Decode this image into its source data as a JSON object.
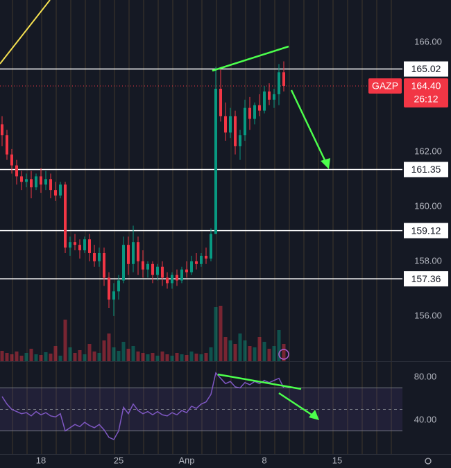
{
  "chart_data": {
    "type": "candlestick",
    "symbol": "GAZP",
    "categories": [
      null,
      null,
      null,
      null,
      null,
      null,
      null,
      null,
      "18",
      null,
      null,
      null,
      null,
      null,
      null,
      null,
      null,
      null,
      null,
      null,
      null,
      null,
      null,
      null,
      "25",
      null,
      null,
      null,
      null,
      null,
      null,
      null,
      null,
      null,
      null,
      null,
      null,
      null,
      "Апр",
      null,
      null,
      null,
      null,
      null,
      null,
      null,
      null,
      null,
      null,
      null,
      null,
      null,
      null,
      null,
      "8",
      null,
      null,
      null,
      null,
      null,
      null,
      null,
      null,
      null,
      null,
      null,
      null,
      null,
      null,
      "15"
    ],
    "open": [
      163.0,
      162.6,
      161.9,
      161.5,
      161.1,
      160.9,
      161.0,
      160.7,
      161.1,
      160.8,
      161.0,
      160.6,
      160.4,
      160.8,
      158.5,
      158.7,
      158.6,
      158.4,
      158.8,
      158.3,
      158.0,
      158.3,
      157.4,
      156.6,
      156.9,
      157.3,
      158.6,
      157.9,
      158.7,
      158.0,
      157.7,
      157.9,
      157.5,
      157.8,
      157.4,
      157.2,
      157.5,
      157.3,
      157.7,
      157.6,
      158.0,
      157.9,
      158.2,
      158.1,
      159.0,
      164.3,
      163.3,
      162.7,
      163.3,
      162.2,
      162.6,
      163.6,
      163.2,
      163.7,
      163.5,
      164.2,
      163.9,
      164.1,
      164.9,
      null,
      null,
      null,
      null,
      null,
      null,
      null,
      null,
      null,
      null,
      null
    ],
    "high": [
      163.3,
      162.8,
      162.1,
      161.7,
      161.3,
      161.2,
      161.3,
      161.2,
      161.4,
      161.3,
      161.2,
      160.9,
      160.9,
      160.9,
      158.9,
      159.0,
      158.8,
      158.9,
      159.0,
      158.6,
      158.5,
      158.5,
      157.6,
      157.2,
      157.5,
      158.9,
      158.9,
      159.3,
      158.9,
      158.4,
      158.0,
      158.0,
      157.9,
      158.0,
      157.6,
      157.6,
      157.7,
      157.8,
      158.0,
      158.2,
      158.3,
      158.3,
      158.5,
      159.2,
      165.1,
      165.0,
      163.8,
      163.6,
      163.5,
      162.8,
      163.9,
      164.0,
      163.8,
      164.1,
      164.4,
      164.5,
      164.3,
      165.2,
      165.3,
      null,
      null,
      null,
      null,
      null,
      null,
      null,
      null,
      null,
      null,
      null
    ],
    "low": [
      162.2,
      161.7,
      161.2,
      160.8,
      160.6,
      160.7,
      160.3,
      160.6,
      160.5,
      160.6,
      160.3,
      160.2,
      160.3,
      158.3,
      158.2,
      158.4,
      158.1,
      158.3,
      158.0,
      157.8,
      157.8,
      157.1,
      156.3,
      156.0,
      156.6,
      157.2,
      157.5,
      157.6,
      157.5,
      157.4,
      157.4,
      157.2,
      157.3,
      157.1,
      157.0,
      157.0,
      157.1,
      157.2,
      157.4,
      157.5,
      157.7,
      157.8,
      157.9,
      158.0,
      159.0,
      163.1,
      162.4,
      162.5,
      161.9,
      161.7,
      162.4,
      162.8,
      163.0,
      163.3,
      163.4,
      163.7,
      163.6,
      163.7,
      164.2,
      null,
      null,
      null,
      null,
      null,
      null,
      null,
      null,
      null,
      null,
      null
    ],
    "close": [
      162.6,
      161.9,
      161.5,
      161.1,
      160.9,
      161.0,
      160.7,
      161.1,
      160.8,
      161.0,
      160.6,
      160.4,
      160.8,
      158.5,
      158.7,
      158.6,
      158.4,
      158.8,
      158.3,
      158.0,
      158.3,
      157.4,
      156.6,
      156.9,
      157.3,
      158.6,
      157.9,
      158.7,
      158.0,
      157.7,
      157.9,
      157.5,
      157.8,
      157.4,
      157.2,
      157.5,
      157.3,
      157.7,
      157.6,
      158.0,
      157.9,
      158.2,
      158.1,
      159.0,
      164.3,
      163.3,
      162.7,
      163.3,
      162.2,
      162.6,
      163.6,
      163.2,
      163.7,
      163.5,
      164.2,
      163.9,
      164.1,
      164.9,
      164.4,
      null,
      null,
      null,
      null,
      null,
      null,
      null,
      null,
      null,
      null,
      null
    ],
    "up_color": "#089981",
    "down_color": "#f23645",
    "ylim": [
      154.35,
      167.54
    ],
    "yticks": [
      {
        "value": 156,
        "label": "156.00"
      },
      {
        "value": 158,
        "label": "158.00"
      },
      {
        "value": 160,
        "label": "160.00"
      },
      {
        "value": 162,
        "label": "162.00"
      },
      {
        "value": 166,
        "label": "166.00"
      }
    ],
    "levels": [
      165.02,
      161.35,
      159.12,
      157.36
    ],
    "level_color": "#ffffff",
    "last_price": {
      "value": 164.4,
      "label": "164.40"
    },
    "timer": "26:12",
    "volume": [
      15,
      12,
      10,
      14,
      8,
      12,
      18,
      10,
      9,
      13,
      11,
      22,
      8,
      60,
      20,
      12,
      16,
      10,
      25,
      14,
      12,
      30,
      40,
      20,
      15,
      28,
      18,
      22,
      14,
      12,
      10,
      12,
      8,
      14,
      10,
      8,
      12,
      10,
      9,
      14,
      11,
      10,
      12,
      20,
      78,
      80,
      35,
      30,
      25,
      40,
      30,
      22,
      20,
      35,
      28,
      18,
      22,
      45,
      25,
      null,
      null,
      null,
      null,
      null,
      null,
      null,
      null,
      null,
      null,
      null
    ],
    "vlim": [
      0,
      100
    ],
    "rsi": {
      "color": "#7e57c2",
      "ylim": [
        8.4,
        94.2
      ],
      "yticks": [
        {
          "value": 80,
          "label": "80.00"
        },
        {
          "value": 40,
          "label": "40.00"
        }
      ],
      "band": [
        30,
        70
      ],
      "mid": 50,
      "values": [
        62,
        55,
        50,
        48,
        46,
        47,
        44,
        48,
        45,
        47,
        44,
        43,
        46,
        30,
        33,
        36,
        34,
        38,
        35,
        33,
        36,
        31,
        24,
        22,
        30,
        52,
        46,
        55,
        49,
        46,
        48,
        45,
        48,
        45,
        44,
        47,
        45,
        49,
        47,
        53,
        51,
        55,
        57,
        64,
        84,
        79,
        74,
        76,
        71,
        70,
        75,
        73,
        76,
        74,
        77,
        75,
        77,
        79,
        70,
        null,
        null,
        null,
        null,
        null,
        null,
        null,
        null,
        null,
        null,
        null
      ]
    }
  }
}
